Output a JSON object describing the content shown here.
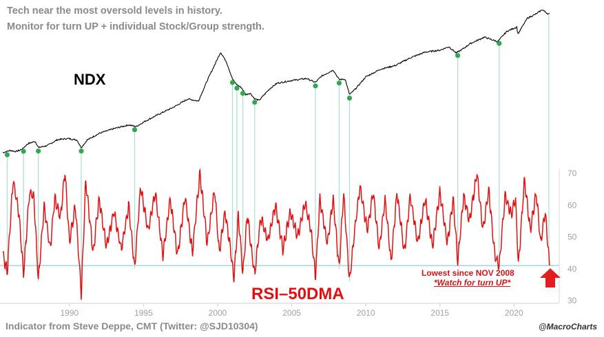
{
  "header": {
    "line1": "Tech near the most oversold levels in history.",
    "line2": "Monitor for turn UP + individual Stock/Group strength."
  },
  "labels": {
    "ndx": "NDX",
    "rsi": "RSI–50DMA",
    "annotation_line1": "Lowest since NOV 2008",
    "annotation_line2": "*Watch for turn UP*",
    "footer": "Indicator from Steve Deppe, CMT (Twitter: @SJD10304)",
    "brand": "@MacroCharts"
  },
  "colors": {
    "ndx_line": "#000000",
    "rsi_line": "#e01010",
    "marker": "#2fa84f",
    "vline": "#a8ddd2",
    "hline": "#9fd8e6",
    "axis_text": "#a0a0a0",
    "arrow": "#e31e1e"
  },
  "chart_data": {
    "type": "line",
    "title": "Tech near the most oversold levels in history.",
    "subtitle": "Monitor for turn UP + individual Stock/Group strength.",
    "xlabel": "",
    "ylabel": "",
    "x_range": [
      1985.5,
      2022.4
    ],
    "x_ticks": [
      1990,
      1995,
      2000,
      2005,
      2010,
      2015,
      2020
    ],
    "series": [
      {
        "name": "NDX",
        "axis": "log (unlabeled)",
        "color": "#000000",
        "points": [
          [
            1985.5,
            0.0
          ],
          [
            1986.0,
            0.08
          ],
          [
            1986.4,
            0.04
          ],
          [
            1986.8,
            0.12
          ],
          [
            1987.2,
            0.32
          ],
          [
            1987.7,
            0.4
          ],
          [
            1987.9,
            0.18
          ],
          [
            1988.5,
            0.25
          ],
          [
            1989.2,
            0.46
          ],
          [
            1989.9,
            0.5
          ],
          [
            1990.5,
            0.45
          ],
          [
            1990.8,
            0.18
          ],
          [
            1991.2,
            0.45
          ],
          [
            1992.0,
            0.68
          ],
          [
            1993.0,
            0.85
          ],
          [
            1994.0,
            0.98
          ],
          [
            1994.5,
            0.92
          ],
          [
            1995.0,
            1.08
          ],
          [
            1996.0,
            1.35
          ],
          [
            1997.0,
            1.6
          ],
          [
            1998.0,
            1.9
          ],
          [
            1998.7,
            1.82
          ],
          [
            1999.3,
            2.55
          ],
          [
            1999.8,
            3.1
          ],
          [
            2000.2,
            3.55
          ],
          [
            2000.6,
            3.2
          ],
          [
            2001.0,
            2.6
          ],
          [
            2001.3,
            2.4
          ],
          [
            2001.6,
            2.3
          ],
          [
            2001.9,
            2.05
          ],
          [
            2002.2,
            2.1
          ],
          [
            2002.5,
            1.9
          ],
          [
            2002.8,
            1.85
          ],
          [
            2003.5,
            2.25
          ],
          [
            2004.0,
            2.45
          ],
          [
            2005.0,
            2.55
          ],
          [
            2006.0,
            2.62
          ],
          [
            2006.6,
            2.48
          ],
          [
            2007.0,
            2.7
          ],
          [
            2007.8,
            2.92
          ],
          [
            2008.2,
            2.58
          ],
          [
            2008.6,
            2.6
          ],
          [
            2008.9,
            2.05
          ],
          [
            2009.3,
            2.25
          ],
          [
            2010.0,
            2.68
          ],
          [
            2011.0,
            2.95
          ],
          [
            2012.0,
            3.08
          ],
          [
            2013.0,
            3.35
          ],
          [
            2014.0,
            3.55
          ],
          [
            2015.0,
            3.62
          ],
          [
            2015.6,
            3.74
          ],
          [
            2016.1,
            3.52
          ],
          [
            2016.6,
            3.68
          ],
          [
            2017.0,
            3.84
          ],
          [
            2018.0,
            4.08
          ],
          [
            2018.9,
            3.92
          ],
          [
            2019.5,
            4.28
          ],
          [
            2020.2,
            4.44
          ],
          [
            2020.25,
            4.18
          ],
          [
            2020.9,
            4.75
          ],
          [
            2021.5,
            4.9
          ],
          [
            2021.9,
            5.05
          ],
          [
            2022.3,
            4.9
          ]
        ]
      },
      {
        "name": "RSI-50DMA",
        "axis": "right",
        "ylim": [
          30,
          73
        ],
        "y_ticks": [
          30,
          40,
          50,
          60,
          70
        ],
        "color": "#e01010",
        "points": [
          [
            1985.5,
            45
          ],
          [
            1985.8,
            39
          ],
          [
            1986.2,
            68
          ],
          [
            1986.6,
            57
          ],
          [
            1986.9,
            38
          ],
          [
            1987.3,
            64
          ],
          [
            1987.6,
            63
          ],
          [
            1987.9,
            36
          ],
          [
            1988.3,
            60
          ],
          [
            1988.7,
            46
          ],
          [
            1989.0,
            62
          ],
          [
            1989.4,
            56
          ],
          [
            1989.7,
            71
          ],
          [
            1990.0,
            48
          ],
          [
            1990.4,
            60
          ],
          [
            1990.8,
            32
          ],
          [
            1991.1,
            68
          ],
          [
            1991.6,
            45
          ],
          [
            1992.0,
            62
          ],
          [
            1992.5,
            47
          ],
          [
            1993.0,
            58
          ],
          [
            1993.5,
            46
          ],
          [
            1994.0,
            60
          ],
          [
            1994.4,
            40
          ],
          [
            1994.8,
            66
          ],
          [
            1995.3,
            52
          ],
          [
            1995.8,
            64
          ],
          [
            1996.3,
            44
          ],
          [
            1996.8,
            62
          ],
          [
            1997.3,
            44
          ],
          [
            1997.8,
            63
          ],
          [
            1998.3,
            45
          ],
          [
            1998.8,
            70
          ],
          [
            1999.3,
            48
          ],
          [
            1999.8,
            65
          ],
          [
            2000.1,
            45
          ],
          [
            2000.5,
            58
          ],
          [
            2000.9,
            45
          ],
          [
            2001.1,
            37
          ],
          [
            2001.4,
            57
          ],
          [
            2001.7,
            38
          ],
          [
            2002.0,
            57
          ],
          [
            2002.5,
            38
          ],
          [
            2002.9,
            56
          ],
          [
            2003.4,
            49
          ],
          [
            2003.9,
            60
          ],
          [
            2004.4,
            46
          ],
          [
            2004.9,
            58
          ],
          [
            2005.4,
            50
          ],
          [
            2005.9,
            61
          ],
          [
            2006.3,
            52
          ],
          [
            2006.6,
            37
          ],
          [
            2006.9,
            62
          ],
          [
            2007.4,
            48
          ],
          [
            2007.8,
            62
          ],
          [
            2008.2,
            40
          ],
          [
            2008.5,
            64
          ],
          [
            2008.9,
            36
          ],
          [
            2009.2,
            50
          ],
          [
            2009.6,
            66
          ],
          [
            2010.1,
            52
          ],
          [
            2010.5,
            64
          ],
          [
            2010.9,
            46
          ],
          [
            2011.3,
            62
          ],
          [
            2011.7,
            42
          ],
          [
            2012.1,
            64
          ],
          [
            2012.6,
            45
          ],
          [
            2013.0,
            63
          ],
          [
            2013.5,
            48
          ],
          [
            2014.0,
            62
          ],
          [
            2014.5,
            47
          ],
          [
            2015.0,
            64
          ],
          [
            2015.5,
            48
          ],
          [
            2015.9,
            62
          ],
          [
            2016.2,
            42
          ],
          [
            2016.6,
            63
          ],
          [
            2017.0,
            55
          ],
          [
            2017.5,
            70
          ],
          [
            2017.9,
            52
          ],
          [
            2018.3,
            65
          ],
          [
            2018.7,
            44
          ],
          [
            2019.0,
            41
          ],
          [
            2019.4,
            63
          ],
          [
            2019.8,
            57
          ],
          [
            2020.1,
            62
          ],
          [
            2020.3,
            41
          ],
          [
            2020.7,
            68
          ],
          [
            2021.1,
            52
          ],
          [
            2021.5,
            64
          ],
          [
            2021.8,
            48
          ],
          [
            2022.1,
            58
          ],
          [
            2022.4,
            41
          ]
        ]
      }
    ],
    "oversold_markers": [
      {
        "x": 1985.8
      },
      {
        "x": 1986.9
      },
      {
        "x": 1987.9
      },
      {
        "x": 1990.8
      },
      {
        "x": 1994.4
      },
      {
        "x": 2001.0
      },
      {
        "x": 2001.3
      },
      {
        "x": 2001.7
      },
      {
        "x": 2002.5
      },
      {
        "x": 2006.6
      },
      {
        "x": 2008.2
      },
      {
        "x": 2008.9
      },
      {
        "x": 2016.2
      },
      {
        "x": 2019.0
      }
    ],
    "current_marker": {
      "x": 2022.35
    },
    "reference_line": {
      "axis": "right",
      "y": 41
    },
    "annotations": [
      "Lowest since NOV 2008",
      "*Watch for turn UP*"
    ]
  }
}
